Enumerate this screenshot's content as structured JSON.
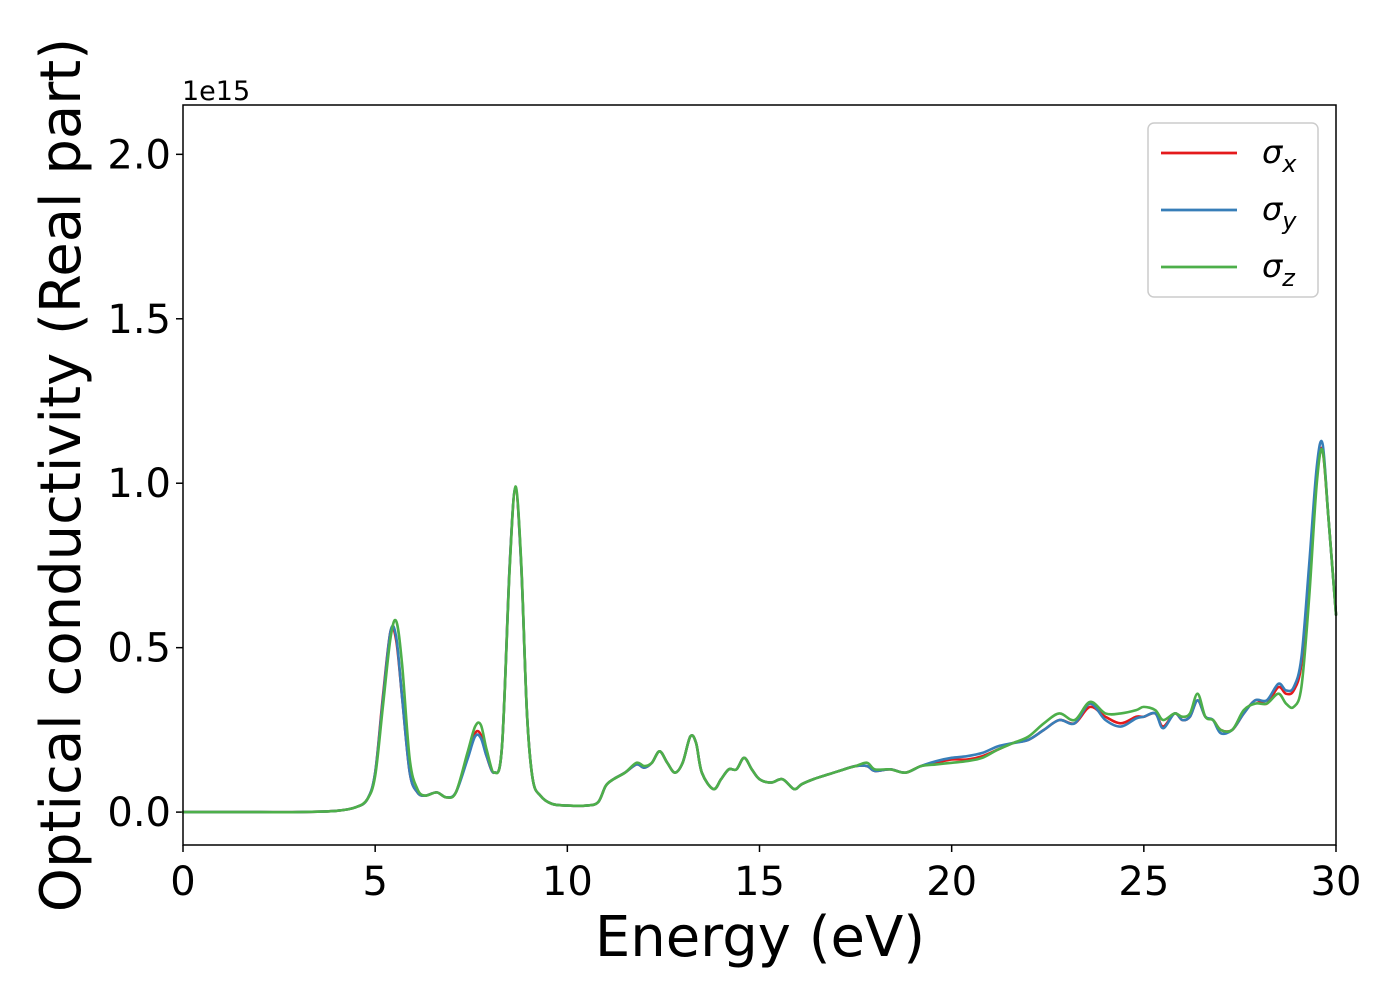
{
  "chart_data": {
    "type": "line",
    "title": "",
    "xlabel": "Energy (eV)",
    "ylabel": "Optical conductivity (Real part)",
    "y_offset_text": "1e15",
    "y_scale_factor": 1000000000000000.0,
    "xlim": [
      0,
      30
    ],
    "ylim": [
      -0.1,
      2.15
    ],
    "xticks": [
      0,
      5,
      10,
      15,
      20,
      25,
      30
    ],
    "xtick_labels": [
      "0",
      "5",
      "10",
      "15",
      "20",
      "25",
      "30"
    ],
    "yticks": [
      0.0,
      0.5,
      1.0,
      1.5,
      2.0
    ],
    "ytick_labels": [
      "0.0",
      "0.5",
      "1.0",
      "1.5",
      "2.0"
    ],
    "grid": false,
    "legend_position": "top-right",
    "series": [
      {
        "name": "σx",
        "name_base": "σ",
        "name_sub": "x",
        "color": "#e41a1c",
        "x": [
          0,
          1,
          2,
          3,
          4,
          4.5,
          4.8,
          5.0,
          5.2,
          5.4,
          5.55,
          5.7,
          5.9,
          6.1,
          6.3,
          6.6,
          6.85,
          7.1,
          7.4,
          7.6,
          7.75,
          7.9,
          8.1,
          8.3,
          8.5,
          8.65,
          8.8,
          8.95,
          9.1,
          9.3,
          9.6,
          10.0,
          10.5,
          10.8,
          11.0,
          11.2,
          11.5,
          11.8,
          12.0,
          12.2,
          12.4,
          12.6,
          12.8,
          13.0,
          13.2,
          13.35,
          13.5,
          13.8,
          14.0,
          14.2,
          14.4,
          14.6,
          14.8,
          15.0,
          15.3,
          15.6,
          15.9,
          16.1,
          16.4,
          16.8,
          17.2,
          17.5,
          17.8,
          18.0,
          18.4,
          18.8,
          19.2,
          19.6,
          20.0,
          20.4,
          20.8,
          21.2,
          21.6,
          22.0,
          22.4,
          22.8,
          23.2,
          23.6,
          24.0,
          24.4,
          24.8,
          25.0,
          25.3,
          25.5,
          25.8,
          26.0,
          26.2,
          26.4,
          26.6,
          26.8,
          27.0,
          27.3,
          27.6,
          27.9,
          28.2,
          28.5,
          28.7,
          28.9,
          29.1,
          29.3,
          29.5,
          29.65,
          29.8,
          30.0
        ],
        "values": [
          0,
          0,
          0,
          0,
          0.004,
          0.015,
          0.04,
          0.12,
          0.35,
          0.55,
          0.52,
          0.35,
          0.12,
          0.06,
          0.05,
          0.06,
          0.045,
          0.06,
          0.17,
          0.24,
          0.235,
          0.17,
          0.12,
          0.2,
          0.75,
          0.98,
          0.75,
          0.3,
          0.1,
          0.05,
          0.025,
          0.02,
          0.02,
          0.03,
          0.08,
          0.1,
          0.12,
          0.145,
          0.135,
          0.15,
          0.185,
          0.15,
          0.12,
          0.15,
          0.23,
          0.21,
          0.12,
          0.07,
          0.1,
          0.13,
          0.13,
          0.165,
          0.13,
          0.1,
          0.09,
          0.1,
          0.07,
          0.085,
          0.1,
          0.115,
          0.13,
          0.14,
          0.14,
          0.125,
          0.13,
          0.12,
          0.14,
          0.15,
          0.16,
          0.16,
          0.17,
          0.19,
          0.21,
          0.22,
          0.25,
          0.28,
          0.27,
          0.32,
          0.29,
          0.27,
          0.29,
          0.29,
          0.3,
          0.26,
          0.3,
          0.28,
          0.29,
          0.34,
          0.29,
          0.28,
          0.25,
          0.25,
          0.3,
          0.34,
          0.33,
          0.38,
          0.36,
          0.37,
          0.45,
          0.72,
          1.03,
          1.1,
          0.9,
          0.6
        ]
      },
      {
        "name": "σy",
        "name_base": "σ",
        "name_sub": "y",
        "color": "#377eb8",
        "x": [
          0,
          1,
          2,
          3,
          4,
          4.5,
          4.8,
          5.0,
          5.2,
          5.4,
          5.55,
          5.7,
          5.9,
          6.1,
          6.3,
          6.6,
          6.85,
          7.1,
          7.4,
          7.6,
          7.75,
          7.9,
          8.1,
          8.3,
          8.5,
          8.65,
          8.8,
          8.95,
          9.1,
          9.3,
          9.6,
          10.0,
          10.5,
          10.8,
          11.0,
          11.2,
          11.5,
          11.8,
          12.0,
          12.2,
          12.4,
          12.6,
          12.8,
          13.0,
          13.2,
          13.35,
          13.5,
          13.8,
          14.0,
          14.2,
          14.4,
          14.6,
          14.8,
          15.0,
          15.3,
          15.6,
          15.9,
          16.1,
          16.4,
          16.8,
          17.2,
          17.5,
          17.8,
          18.0,
          18.4,
          18.8,
          19.2,
          19.6,
          20.0,
          20.4,
          20.8,
          21.2,
          21.6,
          22.0,
          22.4,
          22.8,
          23.2,
          23.6,
          24.0,
          24.4,
          24.8,
          25.0,
          25.3,
          25.5,
          25.8,
          26.0,
          26.2,
          26.4,
          26.6,
          26.8,
          27.0,
          27.3,
          27.6,
          27.9,
          28.2,
          28.5,
          28.7,
          28.9,
          29.1,
          29.3,
          29.5,
          29.65,
          29.8,
          30.0
        ],
        "values": [
          0,
          0,
          0,
          0,
          0.004,
          0.015,
          0.04,
          0.12,
          0.34,
          0.55,
          0.53,
          0.35,
          0.12,
          0.06,
          0.05,
          0.06,
          0.045,
          0.06,
          0.16,
          0.23,
          0.225,
          0.17,
          0.12,
          0.2,
          0.75,
          0.985,
          0.75,
          0.3,
          0.1,
          0.05,
          0.025,
          0.02,
          0.02,
          0.03,
          0.08,
          0.1,
          0.12,
          0.145,
          0.135,
          0.15,
          0.185,
          0.15,
          0.12,
          0.15,
          0.23,
          0.21,
          0.12,
          0.07,
          0.1,
          0.13,
          0.13,
          0.165,
          0.13,
          0.1,
          0.09,
          0.1,
          0.07,
          0.085,
          0.1,
          0.115,
          0.13,
          0.14,
          0.14,
          0.125,
          0.13,
          0.12,
          0.14,
          0.155,
          0.165,
          0.17,
          0.18,
          0.2,
          0.21,
          0.22,
          0.25,
          0.28,
          0.27,
          0.33,
          0.28,
          0.26,
          0.285,
          0.29,
          0.3,
          0.255,
          0.3,
          0.28,
          0.29,
          0.34,
          0.29,
          0.28,
          0.24,
          0.25,
          0.3,
          0.34,
          0.34,
          0.39,
          0.37,
          0.38,
          0.47,
          0.75,
          1.05,
          1.12,
          0.9,
          0.6
        ]
      },
      {
        "name": "σz",
        "name_base": "σ",
        "name_sub": "z",
        "color": "#4daf4a",
        "x": [
          0,
          1,
          2,
          3,
          4,
          4.5,
          4.8,
          5.0,
          5.2,
          5.4,
          5.55,
          5.7,
          5.9,
          6.1,
          6.3,
          6.6,
          6.85,
          7.1,
          7.4,
          7.6,
          7.75,
          7.9,
          8.1,
          8.3,
          8.5,
          8.65,
          8.8,
          8.95,
          9.1,
          9.3,
          9.6,
          10.0,
          10.5,
          10.8,
          11.0,
          11.2,
          11.5,
          11.8,
          12.0,
          12.2,
          12.4,
          12.6,
          12.8,
          13.0,
          13.2,
          13.35,
          13.5,
          13.8,
          14.0,
          14.2,
          14.4,
          14.6,
          14.8,
          15.0,
          15.3,
          15.6,
          15.9,
          16.1,
          16.4,
          16.8,
          17.2,
          17.5,
          17.8,
          18.0,
          18.4,
          18.8,
          19.2,
          19.6,
          20.0,
          20.4,
          20.8,
          21.2,
          21.6,
          22.0,
          22.4,
          22.8,
          23.2,
          23.6,
          24.0,
          24.4,
          24.8,
          25.0,
          25.3,
          25.5,
          25.8,
          26.0,
          26.2,
          26.4,
          26.6,
          26.8,
          27.0,
          27.3,
          27.6,
          27.9,
          28.2,
          28.5,
          28.7,
          28.9,
          29.1,
          29.3,
          29.5,
          29.65,
          29.8,
          30.0
        ],
        "values": [
          0,
          0,
          0,
          0,
          0.004,
          0.015,
          0.04,
          0.11,
          0.32,
          0.53,
          0.58,
          0.45,
          0.16,
          0.07,
          0.05,
          0.06,
          0.045,
          0.06,
          0.18,
          0.26,
          0.265,
          0.19,
          0.12,
          0.2,
          0.74,
          0.99,
          0.76,
          0.3,
          0.1,
          0.05,
          0.025,
          0.02,
          0.02,
          0.03,
          0.08,
          0.1,
          0.12,
          0.15,
          0.14,
          0.15,
          0.185,
          0.15,
          0.12,
          0.15,
          0.23,
          0.21,
          0.12,
          0.07,
          0.1,
          0.13,
          0.13,
          0.165,
          0.13,
          0.1,
          0.09,
          0.1,
          0.07,
          0.085,
          0.1,
          0.115,
          0.13,
          0.14,
          0.15,
          0.13,
          0.13,
          0.12,
          0.14,
          0.145,
          0.15,
          0.155,
          0.165,
          0.19,
          0.21,
          0.23,
          0.27,
          0.3,
          0.28,
          0.335,
          0.3,
          0.3,
          0.31,
          0.32,
          0.31,
          0.28,
          0.3,
          0.29,
          0.3,
          0.36,
          0.29,
          0.28,
          0.25,
          0.25,
          0.31,
          0.33,
          0.33,
          0.36,
          0.33,
          0.32,
          0.38,
          0.65,
          1.0,
          1.1,
          0.9,
          0.6
        ]
      }
    ]
  }
}
